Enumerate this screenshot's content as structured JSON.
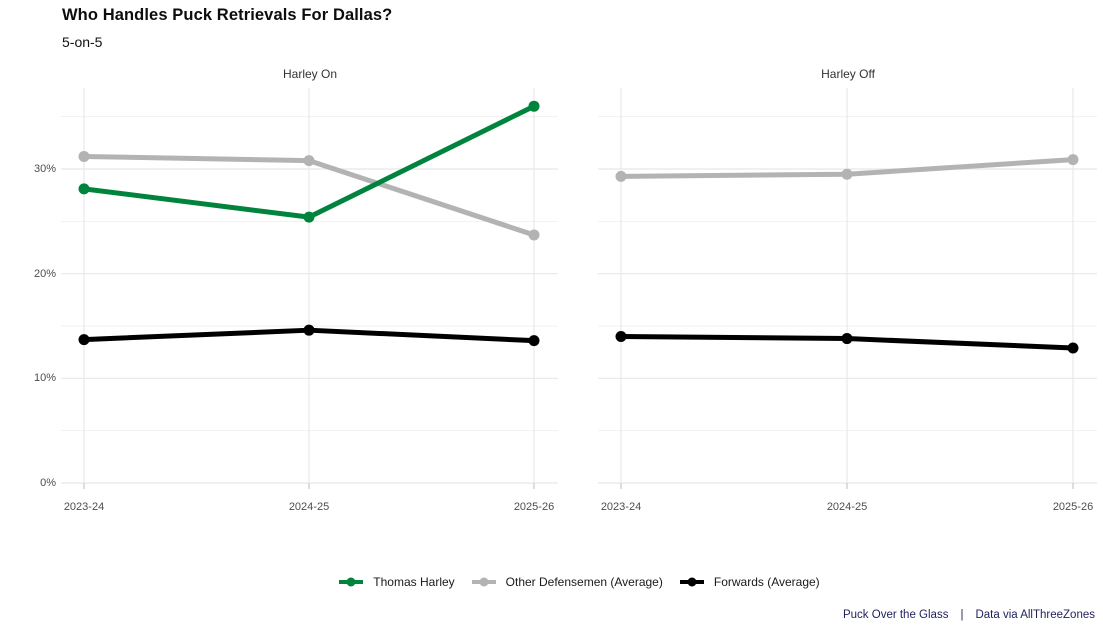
{
  "header": {
    "title": "Who Handles Puck Retrievals For Dallas?",
    "subtitle": "5-on-5"
  },
  "legend": {
    "items": [
      {
        "label": "Thomas Harley",
        "color": "#00843d"
      },
      {
        "label": "Other Defensemen (Average)",
        "color": "#b3b3b3"
      },
      {
        "label": "Forwards (Average)",
        "color": "#000000"
      }
    ]
  },
  "footer": {
    "left": "Puck Over the Glass",
    "separator": "|",
    "right": "Data via AllThreeZones",
    "color": "#1f1f5f"
  },
  "colors": {
    "accent_green": "#00843d",
    "gray_series": "#b3b3b3",
    "black_series": "#000000",
    "grid_major": "#e8e8e8",
    "grid_minor": "#f1f1f1",
    "tick": "#c8c8c8",
    "axis_text": "#4d4d4d"
  },
  "chart_data": {
    "type": "line",
    "title": "Who Handles Puck Retrievals For Dallas?",
    "subtitle": "5-on-5",
    "xlabel": "",
    "ylabel": "",
    "grid": true,
    "legend_position": "bottom",
    "ylim": [
      0,
      37.7
    ],
    "yaxis": {
      "major_ticks": [
        0,
        10,
        20,
        30
      ],
      "labels": [
        "0%",
        "10%",
        "20%",
        "30%"
      ],
      "minor_ticks": [
        5,
        15,
        25,
        35
      ],
      "format": "percent"
    },
    "categories": [
      "2023-24",
      "2024-25",
      "2025-26"
    ],
    "facets": [
      {
        "title": "Harley On",
        "categories": [
          "2023-24",
          "2024-25",
          "2025-26"
        ],
        "series": [
          {
            "name": "Thomas Harley",
            "color": "#00843d",
            "values": [
              28.1,
              25.4,
              36.0
            ]
          },
          {
            "name": "Other Defensemen (Average)",
            "color": "#b3b3b3",
            "values": [
              31.2,
              30.8,
              23.7
            ]
          },
          {
            "name": "Forwards (Average)",
            "color": "#000000",
            "values": [
              13.7,
              14.6,
              13.6
            ]
          }
        ]
      },
      {
        "title": "Harley Off",
        "categories": [
          "2023-24",
          "2024-25",
          "2025-26"
        ],
        "series": [
          {
            "name": "Other Defensemen (Average)",
            "color": "#b3b3b3",
            "values": [
              29.3,
              29.5,
              30.9
            ]
          },
          {
            "name": "Forwards (Average)",
            "color": "#000000",
            "values": [
              14.0,
              13.8,
              12.9
            ]
          }
        ]
      }
    ]
  }
}
